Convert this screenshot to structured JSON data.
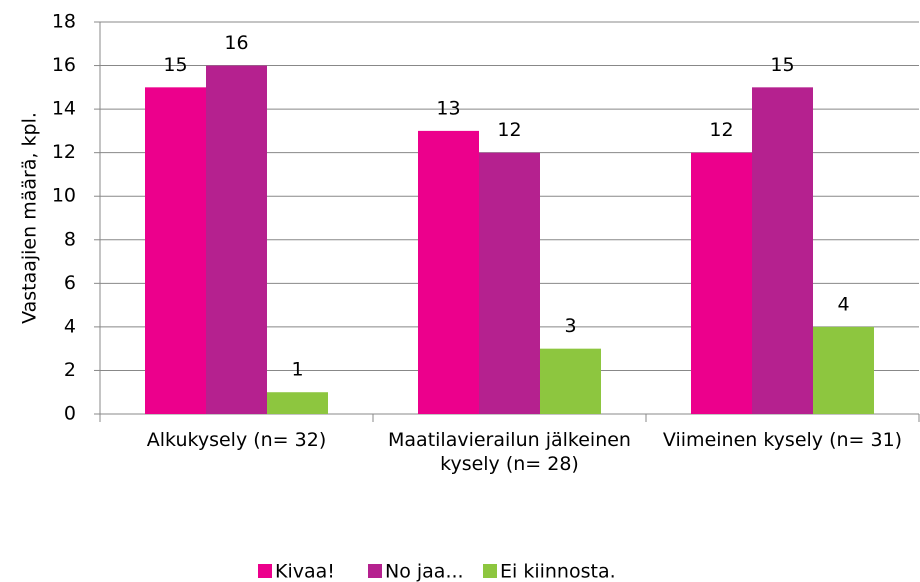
{
  "chart_data": {
    "type": "bar",
    "y_label": "Vastaajien määrä, kpl.",
    "categories": [
      "Alkukysely (n= 32)",
      "Maatilavierailun jälkeinen kysely (n= 28)",
      "Viimeinen kysely (n= 31)"
    ],
    "series": [
      {
        "name": "Kivaa!",
        "color": "#ec008c",
        "values": [
          15,
          13,
          12
        ]
      },
      {
        "name": "No jaa...",
        "color": "#b5218f",
        "values": [
          16,
          12,
          15
        ]
      },
      {
        "name": "Ei kiinnosta.",
        "color": "#8dc63f",
        "values": [
          1,
          3,
          4
        ]
      }
    ],
    "ylim": [
      0,
      18
    ],
    "yticks": [
      0,
      2,
      4,
      6,
      8,
      10,
      12,
      14,
      16,
      18
    ],
    "grid": true,
    "legend": "bottom"
  }
}
